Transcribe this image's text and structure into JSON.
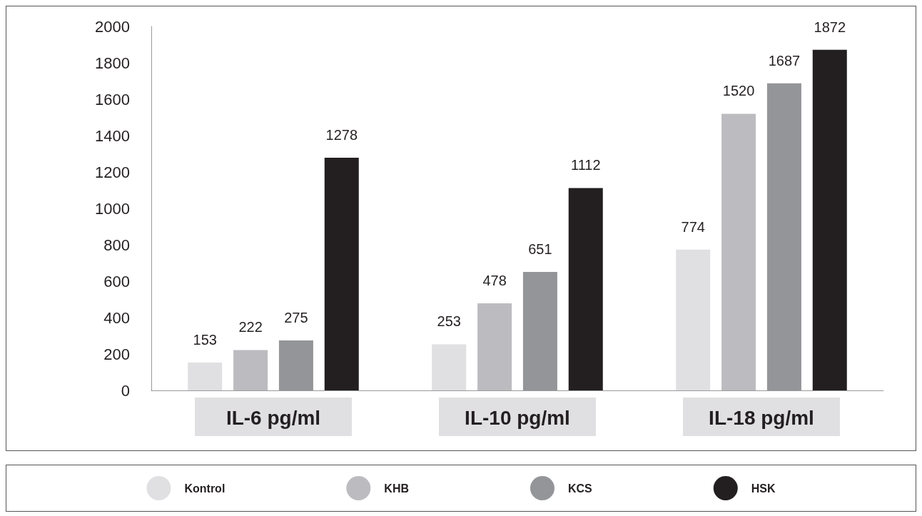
{
  "chart_data": {
    "type": "bar",
    "categories": [
      "IL-6 pg/ml",
      "IL-10 pg/ml",
      "IL-18 pg/ml"
    ],
    "series": [
      {
        "name": "Kontrol",
        "color": "#e0e0e2",
        "values": [
          153,
          253,
          774
        ]
      },
      {
        "name": "KHB",
        "color": "#bcbcc0",
        "values": [
          222,
          478,
          1520
        ]
      },
      {
        "name": "KCS",
        "color": "#939598",
        "values": [
          275,
          651,
          1687
        ]
      },
      {
        "name": "HSK",
        "color": "#231f20",
        "values": [
          1278,
          1112,
          1872
        ]
      }
    ],
    "ylim": [
      0,
      2000
    ],
    "yticks": [
      0,
      200,
      400,
      600,
      800,
      1000,
      1200,
      1400,
      1600,
      1800,
      2000
    ],
    "grid": false,
    "legend": "bottom",
    "data_labels": true
  }
}
